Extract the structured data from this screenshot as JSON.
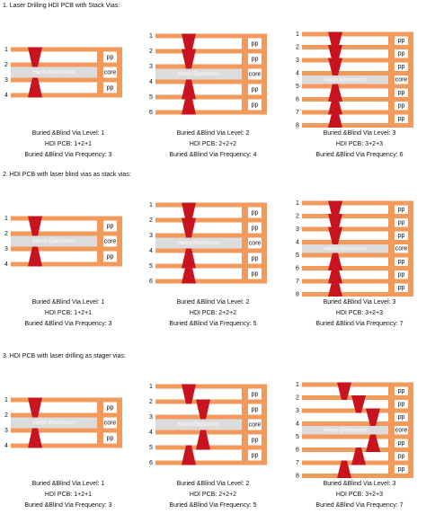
{
  "sections": [
    {
      "title": "1. Laser Drilling HDI PCB with Stack Vias:",
      "diagrams": [
        {
          "layers": [
            "1",
            "2",
            "3",
            "4"
          ],
          "side_labels": [
            "pp",
            "core",
            "pp"
          ],
          "watermark": "Heros Electronics",
          "captions": [
            "Buried &Blind Via Level: 1",
            "HDI PCB: 1+2+1",
            "Buried &Blind Via Frequency: 3"
          ]
        },
        {
          "layers": [
            "1",
            "2",
            "3",
            "4",
            "5",
            "6"
          ],
          "side_labels": [
            "pp",
            "pp",
            "core",
            "pp",
            "pp"
          ],
          "watermark": "Heros Electronics",
          "captions": [
            "Buried &Blind Via Level: 2",
            "HDI PCB: 2+2+2",
            "Buried &Blind Via Frequency: 4"
          ]
        },
        {
          "layers": [
            "1",
            "2",
            "3",
            "4",
            "5",
            "6",
            "7",
            "8"
          ],
          "side_labels": [
            "pp",
            "pp",
            "pp",
            "core",
            "pp",
            "pp",
            "pp"
          ],
          "watermark": "Heros Electronics",
          "captions": [
            "Buried &Blind Via Level: 3",
            "HDI PCB: 3+2+3",
            "Buried &Blind Via Frequency: 6"
          ]
        }
      ]
    },
    {
      "title": "2. HDI PCB with laser blind vias as stack vias:",
      "diagrams": [
        {
          "layers": [
            "1",
            "2",
            "3",
            "4"
          ],
          "side_labels": [
            "pp",
            "core",
            "pp"
          ],
          "watermark": "Heros Electronics",
          "captions": [
            "Buried &Blind Via Level: 1",
            "HDI PCB: 1+2+1",
            "Buried &Blind Via Frequency: 3"
          ]
        },
        {
          "layers": [
            "1",
            "2",
            "3",
            "4",
            "5",
            "6"
          ],
          "side_labels": [
            "pp",
            "pp",
            "core",
            "pp",
            "pp"
          ],
          "watermark": "Heros Electronics",
          "captions": [
            "Buried &Blind Via Level: 2",
            "HDI PCB: 2+2+2",
            "Buried &Blind Via Frequency: 5"
          ]
        },
        {
          "layers": [
            "1",
            "2",
            "3",
            "4",
            "5",
            "6",
            "7",
            "8"
          ],
          "side_labels": [
            "pp",
            "pp",
            "pp",
            "core",
            "pp",
            "pp",
            "pp"
          ],
          "watermark": "Heros Electronics",
          "captions": [
            "Buried &Blind Via Level: 3",
            "HDI PCB: 3+2+3",
            "Buried &Blind Via Frequency: 7"
          ]
        }
      ]
    },
    {
      "title": "3. HDI PCB with laser drilling as stager vias:",
      "diagrams": [
        {
          "layers": [
            "1",
            "2",
            "3",
            "4"
          ],
          "side_labels": [
            "pp",
            "core",
            "pp"
          ],
          "watermark": "Heros Electronics",
          "captions": [
            "Buried &Blind Via Level: 1",
            "HDI PCB: 1+2+1",
            "Buried &Blind Via Frequency: 3"
          ]
        },
        {
          "layers": [
            "1",
            "2",
            "3",
            "4",
            "5",
            "6"
          ],
          "side_labels": [
            "pp",
            "pp",
            "core",
            "pp",
            "pp"
          ],
          "watermark": "Heros Electronics",
          "captions": [
            "Buried &Blind Via Level: 2",
            "HDI PCB: 2+2+2",
            "Buried &Blind Via Frequency: 5"
          ]
        },
        {
          "layers": [
            "1",
            "2",
            "3",
            "4",
            "5",
            "6",
            "7",
            "8"
          ],
          "side_labels": [
            "pp",
            "pp",
            "pp",
            "core",
            "pp",
            "pp",
            "pp"
          ],
          "watermark": "Heros Electronics",
          "captions": [
            "Buried &Blind Via Level: 3",
            "HDI PCB: 3+2+3",
            "Buried &Blind Via Frequency: 7"
          ]
        }
      ]
    }
  ]
}
